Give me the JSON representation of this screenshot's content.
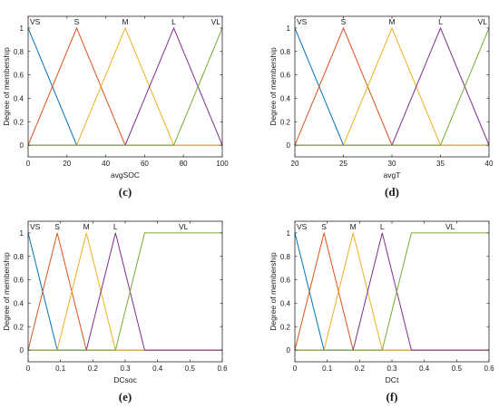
{
  "figure": {
    "colors": {
      "VS": "#0072BD",
      "S": "#D95319",
      "M": "#EDB120",
      "L": "#7E2F8E",
      "VL": "#77AC30",
      "axis": "#262626",
      "text": "#1a1a1a"
    }
  },
  "chart_data": [
    {
      "type": "line",
      "caption": "(c)",
      "xlabel": "avgSOC",
      "ylabel": "Degree of membership",
      "xlim": [
        0,
        100
      ],
      "ylim": [
        -0.1,
        1.1
      ],
      "xticks": [
        "0",
        "20",
        "40",
        "60",
        "80",
        "100"
      ],
      "xtick_values": [
        0,
        20,
        40,
        60,
        80,
        100
      ],
      "yticks": [
        "0",
        "0.2",
        "0.4",
        "0.6",
        "0.8",
        "1"
      ],
      "ytick_values": [
        0,
        0.2,
        0.4,
        0.6,
        0.8,
        1
      ],
      "grid": false,
      "series": [
        {
          "name": "VS",
          "color_key": "VS",
          "x": [
            0,
            25,
            100
          ],
          "y": [
            1,
            0,
            0
          ],
          "label_x": 0
        },
        {
          "name": "S",
          "color_key": "S",
          "x": [
            0,
            25,
            50,
            100
          ],
          "y": [
            0,
            1,
            0,
            0
          ],
          "label_x": 25
        },
        {
          "name": "M",
          "color_key": "M",
          "x": [
            0,
            25,
            50,
            75,
            100
          ],
          "y": [
            0,
            0,
            1,
            0,
            0
          ],
          "label_x": 50
        },
        {
          "name": "L",
          "color_key": "L",
          "x": [
            0,
            50,
            75,
            100
          ],
          "y": [
            0,
            0,
            1,
            0
          ],
          "label_x": 75
        },
        {
          "name": "VL",
          "color_key": "VL",
          "x": [
            0,
            75,
            100
          ],
          "y": [
            0,
            0,
            1
          ],
          "label_x": 100
        }
      ]
    },
    {
      "type": "line",
      "caption": "(d)",
      "xlabel": "avgT",
      "ylabel": "Degree of membership",
      "xlim": [
        20,
        40
      ],
      "ylim": [
        -0.1,
        1.1
      ],
      "xticks": [
        "20",
        "25",
        "30",
        "35",
        "40"
      ],
      "xtick_values": [
        20,
        25,
        30,
        35,
        40
      ],
      "yticks": [
        "0",
        "0.2",
        "0.4",
        "0.6",
        "0.8",
        "1"
      ],
      "ytick_values": [
        0,
        0.2,
        0.4,
        0.6,
        0.8,
        1
      ],
      "grid": false,
      "series": [
        {
          "name": "VS",
          "color_key": "VS",
          "x": [
            20,
            25,
            40
          ],
          "y": [
            1,
            0,
            0
          ],
          "label_x": 20
        },
        {
          "name": "S",
          "color_key": "S",
          "x": [
            20,
            25,
            30,
            40
          ],
          "y": [
            0,
            1,
            0,
            0
          ],
          "label_x": 25
        },
        {
          "name": "M",
          "color_key": "M",
          "x": [
            20,
            25,
            30,
            35,
            40
          ],
          "y": [
            0,
            0,
            1,
            0,
            0
          ],
          "label_x": 30
        },
        {
          "name": "L",
          "color_key": "L",
          "x": [
            20,
            30,
            35,
            40
          ],
          "y": [
            0,
            0,
            1,
            0
          ],
          "label_x": 35
        },
        {
          "name": "VL",
          "color_key": "VL",
          "x": [
            20,
            35,
            40
          ],
          "y": [
            0,
            0,
            1
          ],
          "label_x": 40
        }
      ]
    },
    {
      "type": "line",
      "caption": "(e)",
      "xlabel": "DCsoc",
      "ylabel": "Degree of membership",
      "xlim": [
        0,
        0.6
      ],
      "ylim": [
        -0.1,
        1.1
      ],
      "xticks": [
        "0",
        "0.1",
        "0.2",
        "0.3",
        "0.4",
        "0.5",
        "0.6"
      ],
      "xtick_values": [
        0,
        0.1,
        0.2,
        0.3,
        0.4,
        0.5,
        0.6
      ],
      "yticks": [
        "0",
        "0.2",
        "0.4",
        "0.6",
        "0.8",
        "1"
      ],
      "ytick_values": [
        0,
        0.2,
        0.4,
        0.6,
        0.8,
        1
      ],
      "grid": false,
      "series": [
        {
          "name": "VS",
          "color_key": "VS",
          "x": [
            0,
            0.09,
            0.6
          ],
          "y": [
            1,
            0,
            0
          ],
          "label_x": 0.02
        },
        {
          "name": "S",
          "color_key": "S",
          "x": [
            0,
            0.09,
            0.18,
            0.6
          ],
          "y": [
            0,
            1,
            0,
            0
          ],
          "label_x": 0.09
        },
        {
          "name": "M",
          "color_key": "M",
          "x": [
            0,
            0.09,
            0.18,
            0.27,
            0.6
          ],
          "y": [
            0,
            0,
            1,
            0,
            0
          ],
          "label_x": 0.18
        },
        {
          "name": "L",
          "color_key": "L",
          "x": [
            0,
            0.18,
            0.27,
            0.36,
            0.6
          ],
          "y": [
            0,
            0,
            1,
            0,
            0
          ],
          "label_x": 0.27
        },
        {
          "name": "VL",
          "color_key": "VL",
          "x": [
            0,
            0.27,
            0.36,
            0.6
          ],
          "y": [
            0,
            0,
            1,
            1
          ],
          "label_x": 0.48
        }
      ]
    },
    {
      "type": "line",
      "caption": "(f)",
      "xlabel": "DCt",
      "ylabel": "Degree of membership",
      "xlim": [
        0,
        0.6
      ],
      "ylim": [
        -0.1,
        1.1
      ],
      "xticks": [
        "0",
        "0.1",
        "0.2",
        "0.3",
        "0.4",
        "0.5",
        "0.6"
      ],
      "xtick_values": [
        0,
        0.1,
        0.2,
        0.3,
        0.4,
        0.5,
        0.6
      ],
      "yticks": [
        "0",
        "0.2",
        "0.4",
        "0.6",
        "0.8",
        "1"
      ],
      "ytick_values": [
        0,
        0.2,
        0.4,
        0.6,
        0.8,
        1
      ],
      "grid": false,
      "series": [
        {
          "name": "VS",
          "color_key": "VS",
          "x": [
            0,
            0.09,
            0.6
          ],
          "y": [
            1,
            0,
            0
          ],
          "label_x": 0.02
        },
        {
          "name": "S",
          "color_key": "S",
          "x": [
            0,
            0.09,
            0.18,
            0.6
          ],
          "y": [
            0,
            1,
            0,
            0
          ],
          "label_x": 0.09
        },
        {
          "name": "M",
          "color_key": "M",
          "x": [
            0,
            0.09,
            0.18,
            0.27,
            0.6
          ],
          "y": [
            0,
            0,
            1,
            0,
            0
          ],
          "label_x": 0.18
        },
        {
          "name": "L",
          "color_key": "L",
          "x": [
            0,
            0.18,
            0.27,
            0.36,
            0.6
          ],
          "y": [
            0,
            0,
            1,
            0,
            0
          ],
          "label_x": 0.27
        },
        {
          "name": "VL",
          "color_key": "VL",
          "x": [
            0,
            0.27,
            0.36,
            0.6
          ],
          "y": [
            0,
            0,
            1,
            1
          ],
          "label_x": 0.48
        }
      ]
    }
  ]
}
